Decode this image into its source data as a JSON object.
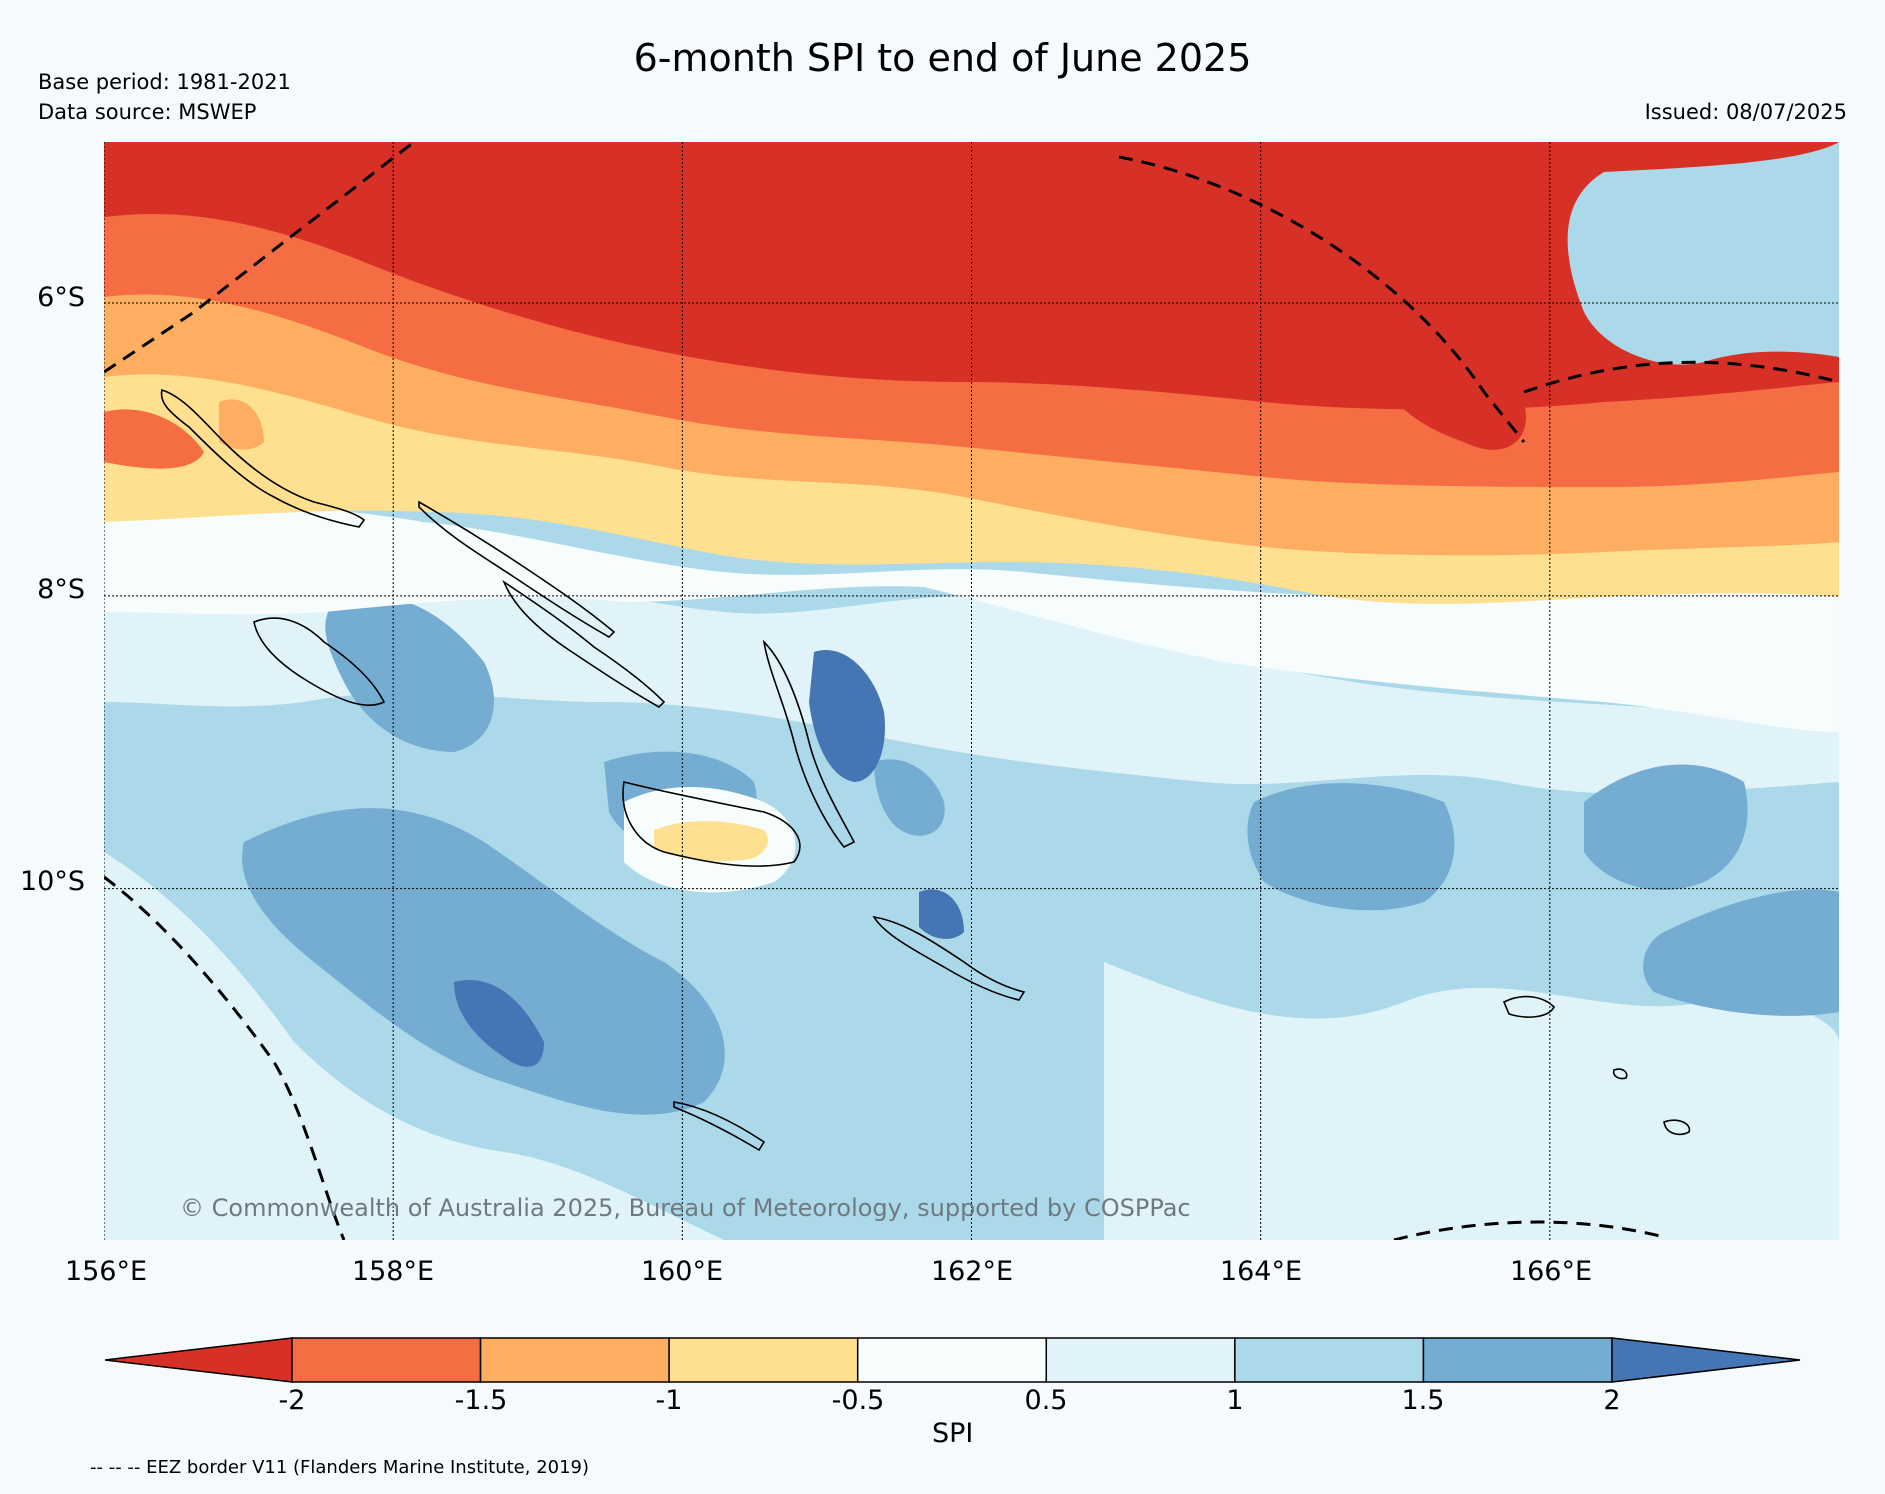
{
  "title": "6-month SPI to end of June 2025",
  "base_period": "Base period: 1981-2021",
  "data_source": "Data source: MSWEP",
  "issued": "Issued: 08/07/2025",
  "copyright": "© Commonwealth of Australia 2025, Bureau of Meteorology, supported by COSPPac",
  "lat_labels": [
    "6°S",
    "8°S",
    "10°S"
  ],
  "lon_labels": [
    "156°E",
    "158°E",
    "160°E",
    "162°E",
    "164°E",
    "166°E"
  ],
  "colorbar": {
    "title": "SPI",
    "ticks": [
      "-2",
      "-1.5",
      "-1",
      "-0.5",
      "0.5",
      "1",
      "1.5",
      "2"
    ],
    "colors": [
      "#d73027",
      "#f46d43",
      "#fdae61",
      "#fee090",
      "#f7fcfd",
      "#e0f3f8",
      "#abd9e9",
      "#74add1",
      "#4575b4"
    ]
  },
  "eez_note": "-- -- -- EEZ border V11 (Flanders Marine Institute, 2019)",
  "map_extent": {
    "lon": [
      156,
      168
    ],
    "lat": [
      -4.9,
      -12.4
    ]
  },
  "gridlines": {
    "lon": [
      156,
      158,
      160,
      162,
      164,
      166
    ],
    "lat": [
      -6,
      -8,
      -10
    ]
  }
}
